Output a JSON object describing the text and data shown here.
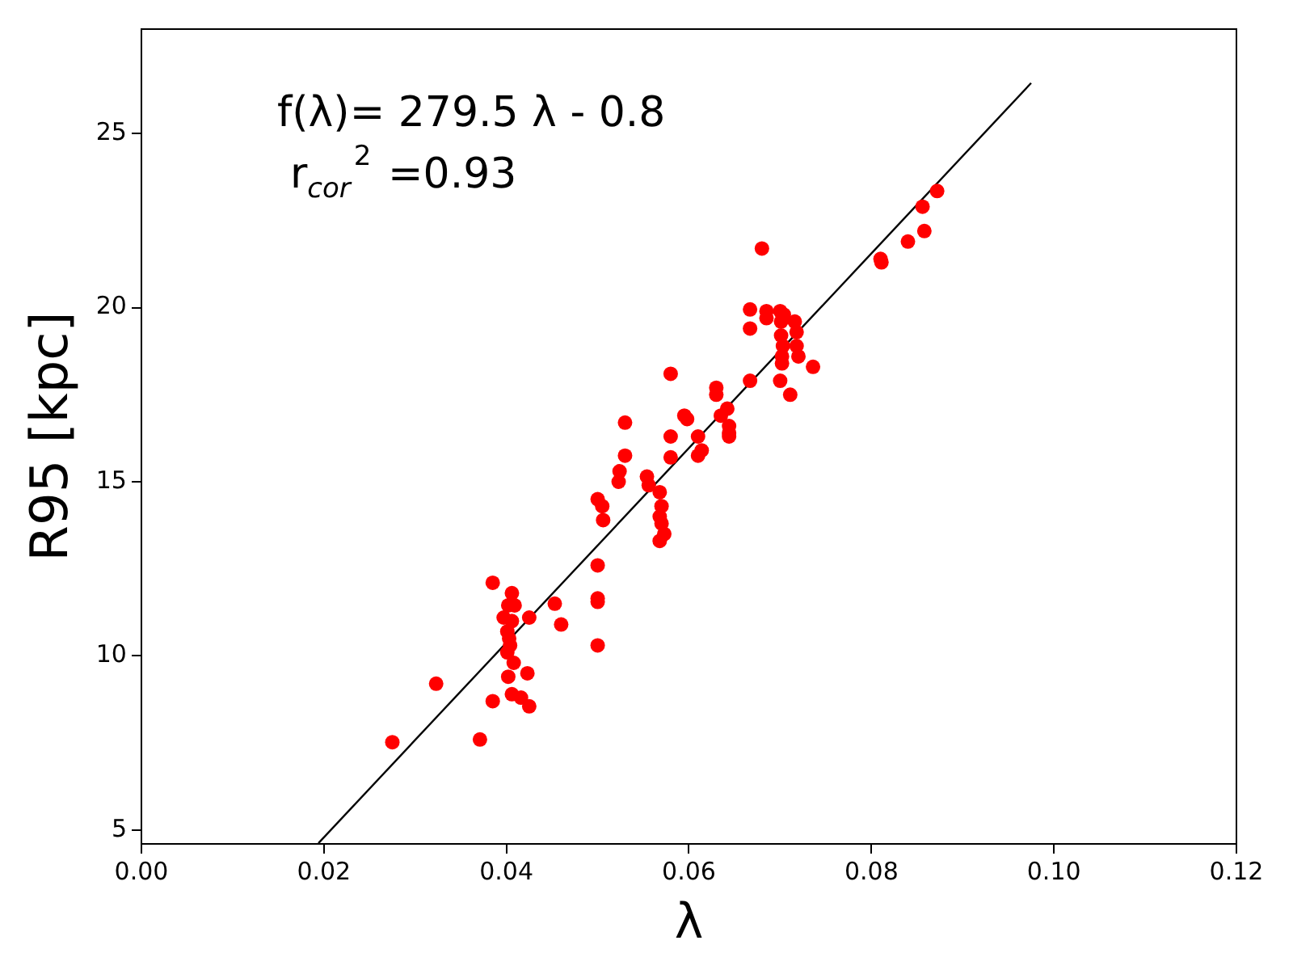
{
  "chart_data": {
    "type": "scatter",
    "xlabel": "λ",
    "ylabel": "R95 [kpc]",
    "annotations": [
      "f(λ)= 279.5 λ - 0.8",
      "r$_{cor}$$^{2}$ =0.93"
    ],
    "xlim": [
      0,
      0.12
    ],
    "ylim": [
      4.6,
      28
    ],
    "xticks": [
      {
        "value": 0,
        "label": "0.00"
      },
      {
        "value": 0.02,
        "label": "0.02"
      },
      {
        "value": 0.04,
        "label": "0.04"
      },
      {
        "value": 0.06,
        "label": "0.06"
      },
      {
        "value": 0.08,
        "label": "0.08"
      },
      {
        "value": 0.1,
        "label": "0.10"
      },
      {
        "value": 0.12,
        "label": "0.12"
      }
    ],
    "yticks": [
      5,
      10,
      15,
      20,
      25
    ],
    "grid": false,
    "legend": false,
    "series": [
      {
        "color": "#ff0000",
        "marker": "circle",
        "x": [
          0.0275,
          0.0323,
          0.0371,
          0.0385,
          0.0385,
          0.0397,
          0.0401,
          0.0403,
          0.0404,
          0.0401,
          0.0406,
          0.0406,
          0.0402,
          0.0409,
          0.0408,
          0.0402,
          0.0406,
          0.0416,
          0.0425,
          0.0423,
          0.0425,
          0.0453,
          0.046,
          0.05,
          0.05,
          0.05,
          0.05,
          0.0505,
          0.0506,
          0.05,
          0.0524,
          0.0523,
          0.053,
          0.053,
          0.0554,
          0.0556,
          0.0568,
          0.057,
          0.0568,
          0.057,
          0.0573,
          0.0568,
          0.058,
          0.058,
          0.058,
          0.0595,
          0.0598,
          0.061,
          0.061,
          0.0614,
          0.063,
          0.063,
          0.0635,
          0.0642,
          0.0644,
          0.0644,
          0.0644,
          0.0667,
          0.0667,
          0.0667,
          0.068,
          0.0685,
          0.0685,
          0.07,
          0.0701,
          0.0701,
          0.0703,
          0.0702,
          0.0702,
          0.0704,
          0.07,
          0.0711,
          0.0716,
          0.0718,
          0.0718,
          0.072,
          0.0736,
          0.081,
          0.0811,
          0.084,
          0.0856,
          0.0858,
          0.0872
        ],
        "values": [
          7.52,
          9.2,
          7.6,
          8.7,
          12.1,
          11.1,
          10.7,
          10.5,
          10.3,
          10.1,
          11.0,
          11.8,
          11.45,
          11.45,
          9.8,
          9.4,
          8.9,
          8.8,
          8.55,
          9.5,
          11.1,
          11.5,
          10.9,
          12.6,
          11.65,
          11.55,
          10.3,
          14.3,
          13.9,
          14.5,
          15.3,
          15.0,
          15.75,
          16.7,
          15.15,
          14.9,
          14.7,
          14.3,
          14.0,
          13.8,
          13.5,
          13.3,
          18.1,
          16.3,
          15.7,
          16.9,
          16.8,
          16.3,
          15.75,
          15.9,
          17.7,
          17.5,
          16.9,
          17.1,
          16.4,
          16.3,
          16.6,
          17.9,
          19.95,
          19.4,
          21.7,
          19.9,
          19.7,
          19.9,
          19.6,
          19.2,
          18.9,
          18.6,
          18.4,
          19.8,
          17.9,
          17.5,
          19.6,
          19.3,
          18.9,
          18.6,
          18.3,
          21.4,
          21.3,
          21.9,
          22.9,
          22.2,
          23.35
        ]
      },
      {
        "type": "line",
        "color": "#000000",
        "marker": "none",
        "x": [
          0.0194,
          0.0975
        ],
        "values": [
          4.62,
          26.45
        ]
      }
    ]
  }
}
